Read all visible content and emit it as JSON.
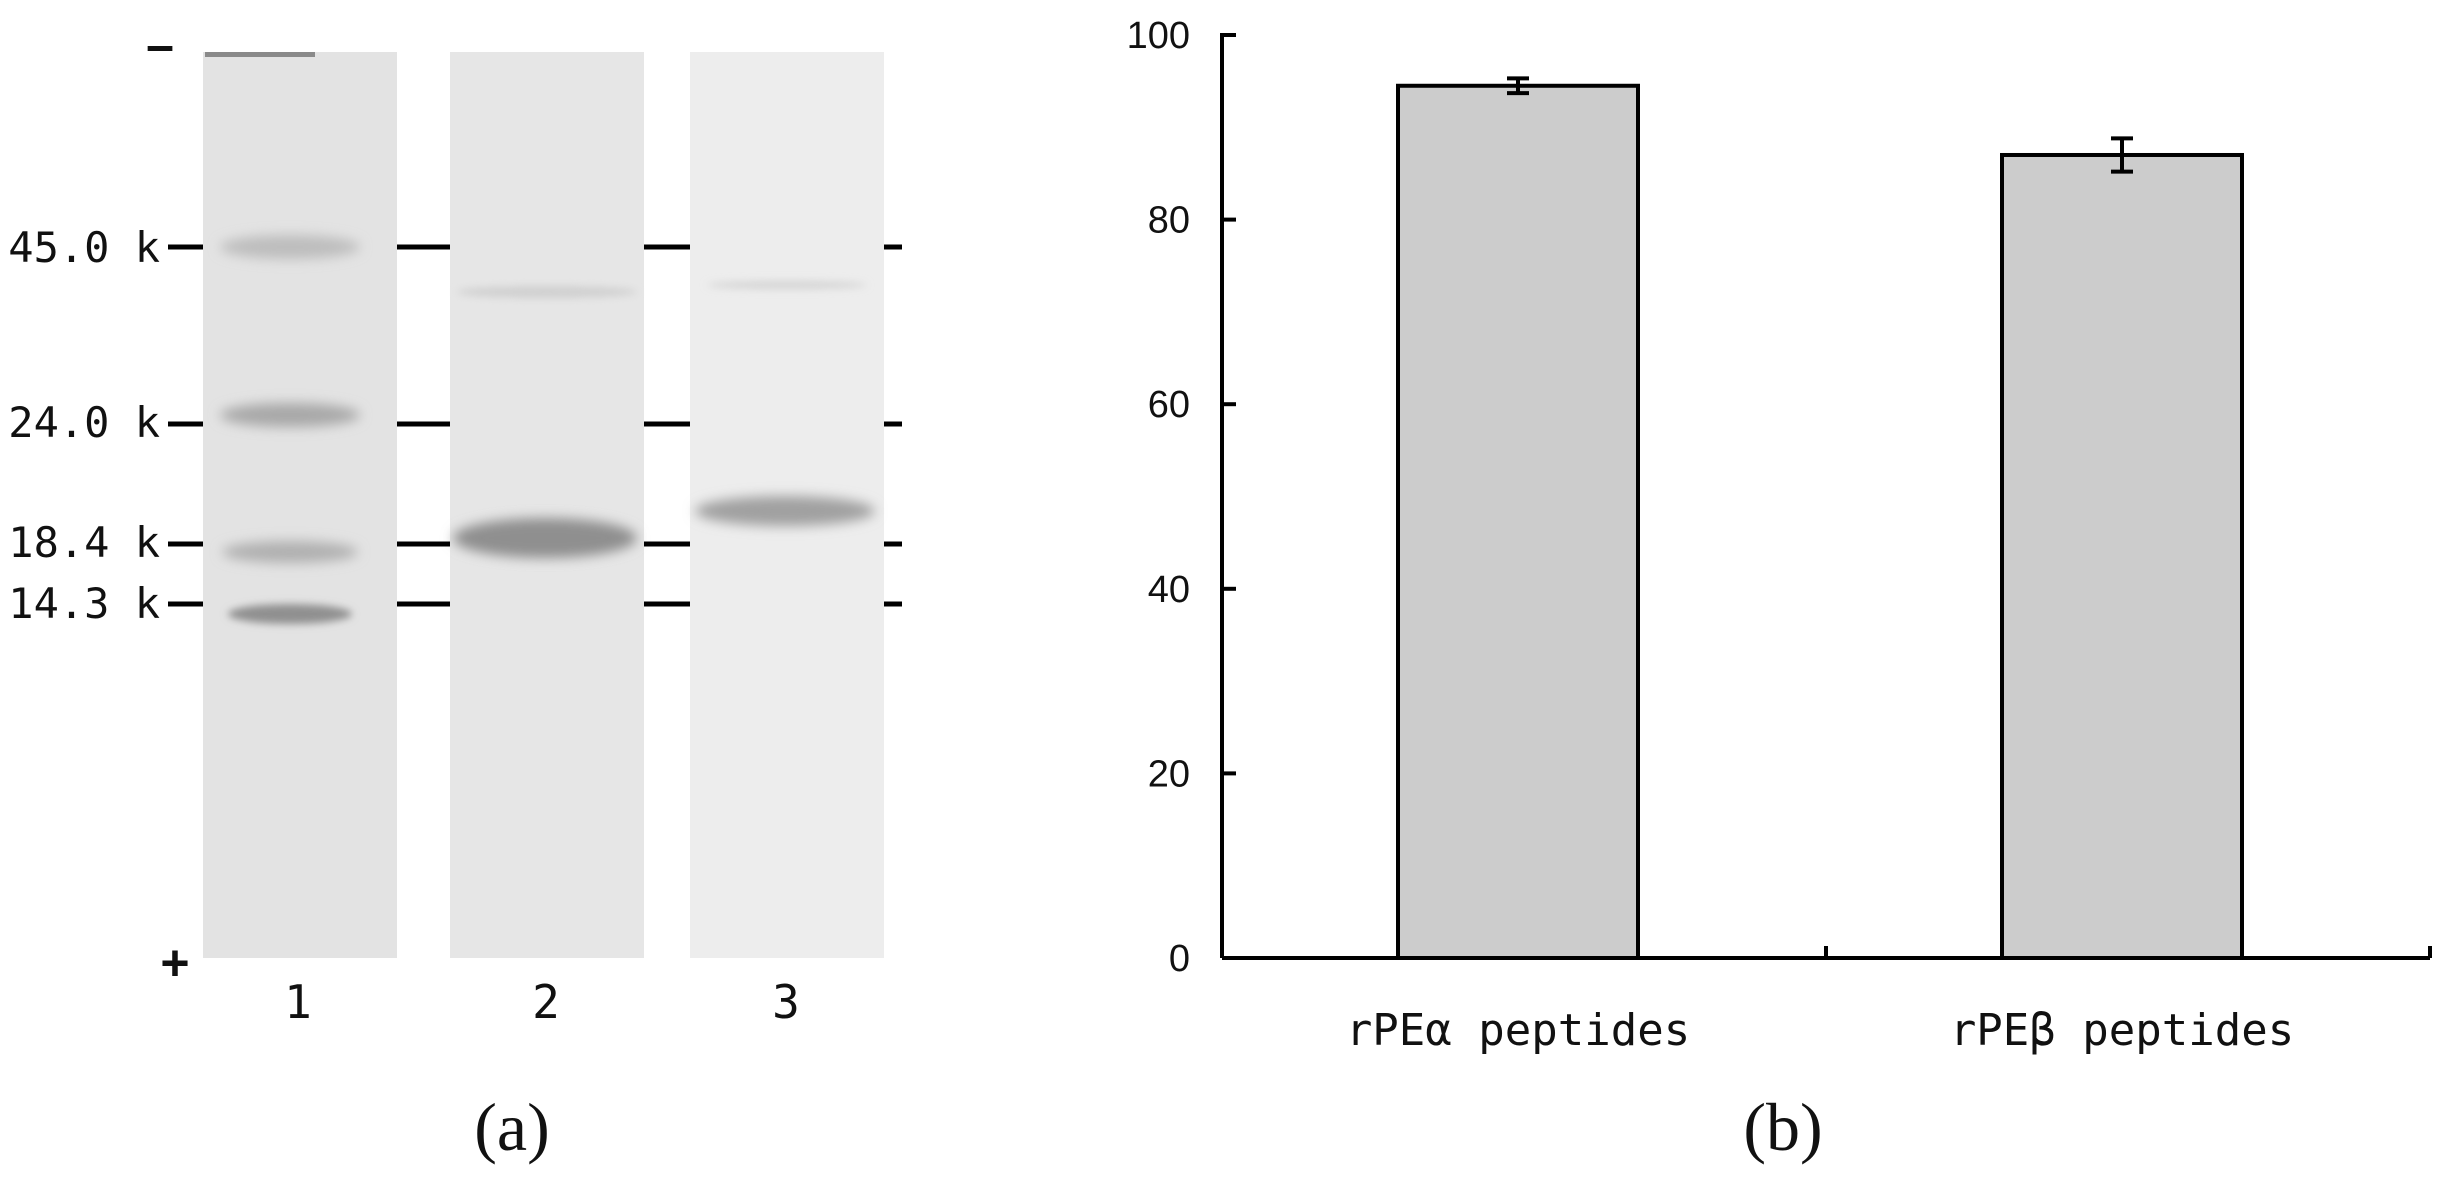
{
  "gel": {
    "panel_label": "(a)",
    "minus_sign": "–",
    "plus_sign": "+",
    "markers": [
      "45.0 k",
      "24.0 k",
      "18.4 k",
      "14.3 k"
    ],
    "lanes": [
      "1",
      "2",
      "3"
    ]
  },
  "chart_data": {
    "type": "bar",
    "panel_label": "(b)",
    "categories": [
      "rPEα peptides",
      "rPEβ peptides"
    ],
    "values": [
      94.5,
      87
    ],
    "error": [
      0.8,
      1.8
    ],
    "ylim": [
      0,
      100
    ],
    "yticks": [
      0,
      20,
      40,
      60,
      80,
      100
    ],
    "xlabel": "",
    "ylabel": "",
    "grid": false,
    "bar_color": "#cccccc"
  }
}
